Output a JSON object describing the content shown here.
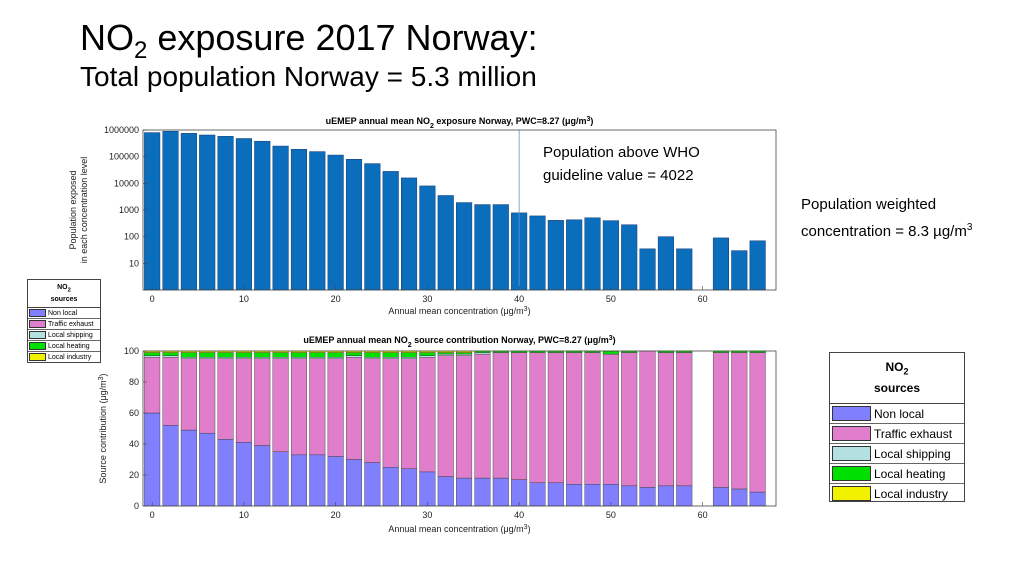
{
  "slide": {
    "title_prefix": "NO",
    "title_sub": "2",
    "title_rest": " exposure 2017 Norway:",
    "subtitle": "Total population Norway = 5.3 million"
  },
  "notes": {
    "who_line1": "Population above WHO",
    "who_line2": "guideline value = 4022",
    "pwc_line1": "Population weighted",
    "pwc_line2_prefix": "concentration =  8.3 µg/m",
    "pwc_line2_sup": "3"
  },
  "legend": {
    "title_prefix": "NO",
    "title_sub": "2",
    "subtitle": "sources",
    "items": [
      {
        "label": "Non local",
        "color": "#8080ff"
      },
      {
        "label": "Traffic exhaust",
        "color": "#e07ecc"
      },
      {
        "label": "Local shipping",
        "color": "#b3e0e0"
      },
      {
        "label": "Local heating",
        "color": "#00e000"
      },
      {
        "label": "Local industry",
        "color": "#f2f200"
      }
    ]
  },
  "chart_data": [
    {
      "type": "bar",
      "title": "uEMEP annual mean NO₂ exposure Norway, PWC=8.27 (μg/m³)",
      "xlabel": "Annual mean concentration (μg/m³)",
      "ylabel": "Population exposed in each concentration level",
      "ylabel_line1": "Population exposed",
      "ylabel_line2": "in each concentration level",
      "yscale": "log",
      "ylim": [
        1,
        1000000
      ],
      "xlim": [
        -1,
        68
      ],
      "bar_color": "#0a6ebd",
      "x": [
        0,
        2,
        4,
        6,
        8,
        10,
        12,
        14,
        16,
        18,
        20,
        22,
        24,
        26,
        28,
        30,
        32,
        34,
        36,
        38,
        40,
        42,
        44,
        46,
        48,
        50,
        52,
        54,
        56,
        58,
        60,
        62,
        64,
        66
      ],
      "values": [
        800000,
        900000,
        750000,
        650000,
        580000,
        480000,
        380000,
        250000,
        190000,
        155000,
        115000,
        80000,
        55000,
        28000,
        16000,
        8000,
        3500,
        1900,
        1600,
        1600,
        780,
        600,
        410,
        430,
        510,
        400,
        280,
        35,
        100,
        35,
        null,
        90,
        30,
        70
      ],
      "reference_line_x": 40,
      "xticks": [
        0,
        10,
        20,
        30,
        40,
        50,
        60
      ],
      "yticks": [
        10,
        100,
        1000,
        10000,
        100000,
        1000000
      ],
      "ytick_labels": [
        "10",
        "100",
        "1000",
        "10000",
        "100000",
        "1000000"
      ],
      "grid": false
    },
    {
      "type": "bar",
      "stacked": true,
      "title": "uEMEP annual mean NO₂ source contribution Norway, PWC=8.27 (μg/m³)",
      "xlabel": "Annual mean concentration (μg/m³)",
      "ylabel": "Source contribution (μg/m³)",
      "ylim": [
        0,
        100
      ],
      "xlim": [
        -1,
        68
      ],
      "x": [
        0,
        2,
        4,
        6,
        8,
        10,
        12,
        14,
        16,
        18,
        20,
        22,
        24,
        26,
        28,
        30,
        32,
        34,
        36,
        38,
        40,
        42,
        44,
        46,
        48,
        50,
        52,
        54,
        56,
        58,
        60,
        62,
        64,
        66
      ],
      "xticks": [
        0,
        10,
        20,
        30,
        40,
        50,
        60
      ],
      "yticks": [
        0,
        20,
        40,
        60,
        80,
        100
      ],
      "grid": false,
      "series": [
        {
          "name": "Non local",
          "color": "#8080ff",
          "values": [
            60,
            52,
            49,
            47,
            43,
            41,
            39,
            35,
            33,
            33,
            32,
            30,
            28,
            25,
            24,
            22,
            19,
            18,
            18,
            18,
            17,
            15,
            15,
            14,
            14,
            14,
            13,
            12,
            13,
            13,
            null,
            12,
            11,
            9
          ]
        },
        {
          "name": "Traffic exhaust",
          "color": "#e07ecc",
          "values": [
            36,
            44,
            46,
            48,
            52,
            54,
            56,
            60,
            62,
            62,
            63,
            66,
            67,
            70,
            71,
            74,
            78,
            79,
            80,
            81,
            82,
            84,
            84,
            85,
            85,
            84,
            86,
            88,
            86,
            86,
            null,
            87,
            88,
            90
          ]
        },
        {
          "name": "Local shipping",
          "color": "#b3e0e0",
          "values": [
            1,
            1,
            1,
            1,
            1,
            1,
            1,
            1,
            1,
            1,
            1,
            1,
            1,
            1,
            1,
            1,
            1,
            1,
            1,
            0,
            0,
            0,
            0,
            0,
            0,
            0,
            0,
            0,
            0,
            0,
            null,
            0,
            0,
            0
          ]
        },
        {
          "name": "Local heating",
          "color": "#00e000",
          "values": [
            2,
            2,
            3,
            3,
            3,
            3,
            3,
            3,
            3,
            3,
            3,
            2,
            3,
            3,
            3,
            2,
            1,
            1,
            1,
            1,
            1,
            1,
            1,
            1,
            1,
            2,
            1,
            0,
            1,
            1,
            null,
            1,
            1,
            1
          ]
        },
        {
          "name": "Local industry",
          "color": "#f2f200",
          "values": [
            1,
            1,
            1,
            1,
            1,
            1,
            1,
            1,
            1,
            1,
            1,
            1,
            1,
            1,
            1,
            1,
            1,
            1,
            0,
            0,
            0,
            0,
            0,
            0,
            0,
            0,
            0,
            0,
            0,
            0,
            null,
            0,
            0,
            0
          ]
        }
      ]
    }
  ]
}
